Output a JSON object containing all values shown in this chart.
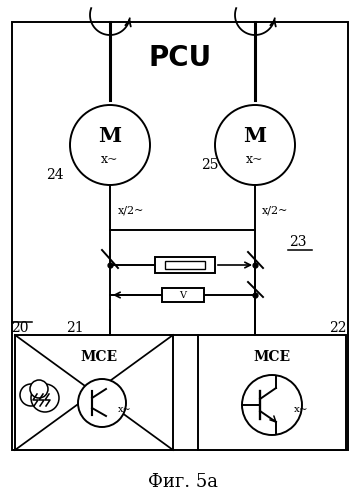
{
  "title": "Фиг. 5а",
  "pcu_label": "PCU",
  "motor1_label": "M",
  "motor1_sub": "x~",
  "motor1_id": "24",
  "motor2_label": "M",
  "motor2_sub": "x~",
  "motor2_id": "25",
  "half_x1": "x/2~",
  "half_x2": "x/2~",
  "bus_label": "23",
  "mce1_label": "MCE",
  "mce1_sub": "x~",
  "mce1_id": "20",
  "mce1_switch_id": "21",
  "mce2_label": "MCE",
  "mce2_sub": "x~",
  "mce2_id": "22",
  "bg_color": "#ffffff",
  "line_color": "#000000"
}
